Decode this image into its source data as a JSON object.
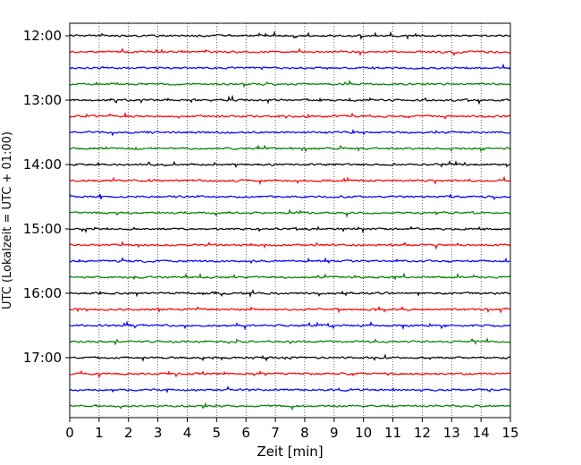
{
  "chart_data": {
    "type": "line",
    "subtype": "helicorder",
    "xlabel": "Zeit  [min]",
    "ylabel": "UTC (Lokalzeit = UTC + 01:00)",
    "xlim": [
      0,
      15
    ],
    "x_ticks": [
      "0",
      "1",
      "2",
      "3",
      "4",
      "5",
      "6",
      "7",
      "8",
      "9",
      "10",
      "11",
      "12",
      "13",
      "14",
      "15"
    ],
    "y_ticks": [
      "12:00",
      "13:00",
      "14:00",
      "15:00",
      "16:00",
      "17:00"
    ],
    "trace_start_times": [
      "12:00",
      "12:15",
      "12:30",
      "12:45",
      "13:00",
      "13:15",
      "13:30",
      "13:45",
      "14:00",
      "14:15",
      "14:30",
      "14:45",
      "15:00",
      "15:15",
      "15:30",
      "15:45",
      "16:00",
      "16:15",
      "16:30",
      "16:45",
      "17:00",
      "17:15",
      "17:30",
      "17:45"
    ],
    "trace_minutes_per_line": 15,
    "color_cycle": [
      "#000000",
      "#ff0000",
      "#0000ff",
      "#008000"
    ],
    "grid": {
      "x": true,
      "y": false,
      "style": "dotted"
    }
  }
}
